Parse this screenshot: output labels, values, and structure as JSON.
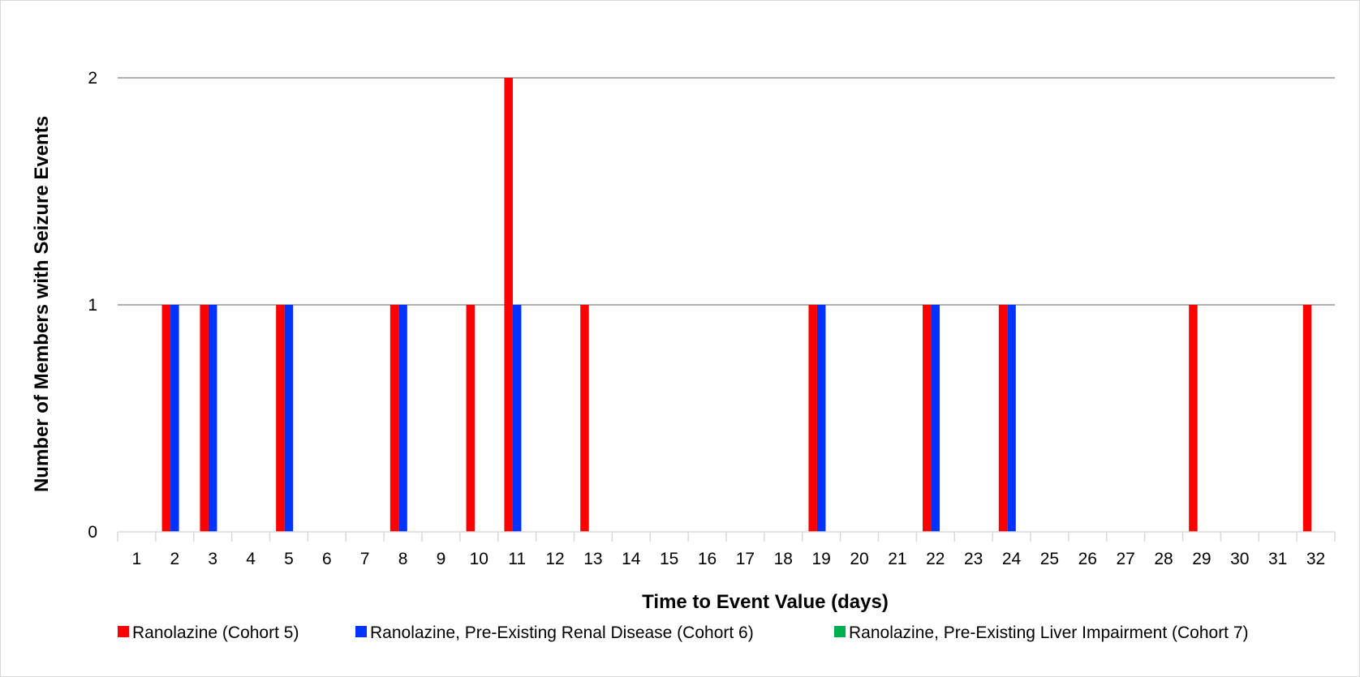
{
  "chart_data": {
    "type": "bar",
    "title": "",
    "xlabel": "Time to Event Value (days)",
    "ylabel": "Number of Members with Seizure Events",
    "ylim": [
      0,
      2
    ],
    "yticks": [
      "0",
      "1",
      "2"
    ],
    "categories": [
      "1",
      "2",
      "3",
      "4",
      "5",
      "6",
      "7",
      "8",
      "9",
      "10",
      "11",
      "12",
      "13",
      "14",
      "15",
      "16",
      "17",
      "18",
      "19",
      "20",
      "21",
      "22",
      "23",
      "24",
      "25",
      "26",
      "27",
      "28",
      "29",
      "30",
      "31",
      "32"
    ],
    "series": [
      {
        "name": "Ranolazine (Cohort 5)",
        "color": "#ff0000",
        "values": [
          0,
          1,
          1,
          0,
          1,
          0,
          0,
          1,
          0,
          1,
          2,
          0,
          1,
          0,
          0,
          0,
          0,
          0,
          1,
          0,
          0,
          1,
          0,
          1,
          0,
          0,
          0,
          0,
          1,
          0,
          0,
          1
        ]
      },
      {
        "name": "Ranolazine, Pre-Existing Renal Disease (Cohort 6)",
        "color": "#0033ff",
        "values": [
          0,
          1,
          1,
          0,
          1,
          0,
          0,
          1,
          0,
          0,
          1,
          0,
          0,
          0,
          0,
          0,
          0,
          0,
          1,
          0,
          0,
          1,
          0,
          1,
          0,
          0,
          0,
          0,
          0,
          0,
          0,
          0
        ]
      },
      {
        "name": "Ranolazine, Pre-Existing Liver Impairment (Cohort 7)",
        "color": "#00b050",
        "values": [
          0,
          0,
          0,
          0,
          0,
          0,
          0,
          0,
          0,
          0,
          0,
          0,
          0,
          0,
          0,
          0,
          0,
          0,
          0,
          0,
          0,
          0,
          0,
          0,
          0,
          0,
          0,
          0,
          0,
          0,
          0,
          0
        ]
      }
    ],
    "grid": true,
    "legend": "bottom"
  }
}
